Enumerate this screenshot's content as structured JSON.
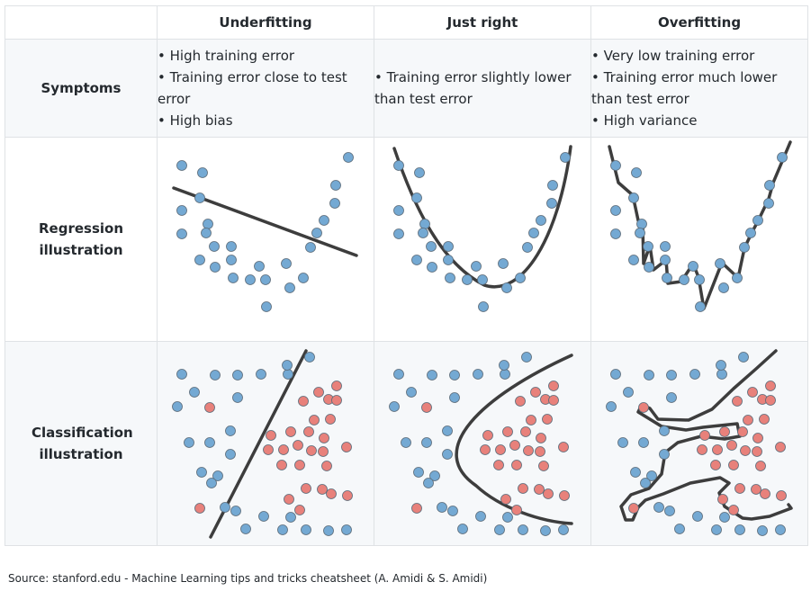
{
  "table": {
    "columns": [
      "",
      "Underfitting",
      "Just right",
      "Overfitting"
    ],
    "rows": [
      {
        "label": "Symptoms",
        "cells": [
          [
            "• High training error",
            "• Training error close to test error",
            "• High bias"
          ],
          [
            "• Training error slightly lower than test error"
          ],
          [
            "• Very low training error",
            "• Training error much lower than test error",
            "• High variance"
          ]
        ]
      },
      {
        "label": "Regression illustration"
      },
      {
        "label": "Classification illustration"
      }
    ]
  },
  "source": "Source: stanford.edu - Machine Learning tips and tricks cheatsheet (A. Amidi & S. Amidi)",
  "colors": {
    "point_blue": "#74a9d3",
    "point_red": "#e8817b",
    "stroke": "#3a3a3a",
    "model": "#3d3d3d"
  }
}
